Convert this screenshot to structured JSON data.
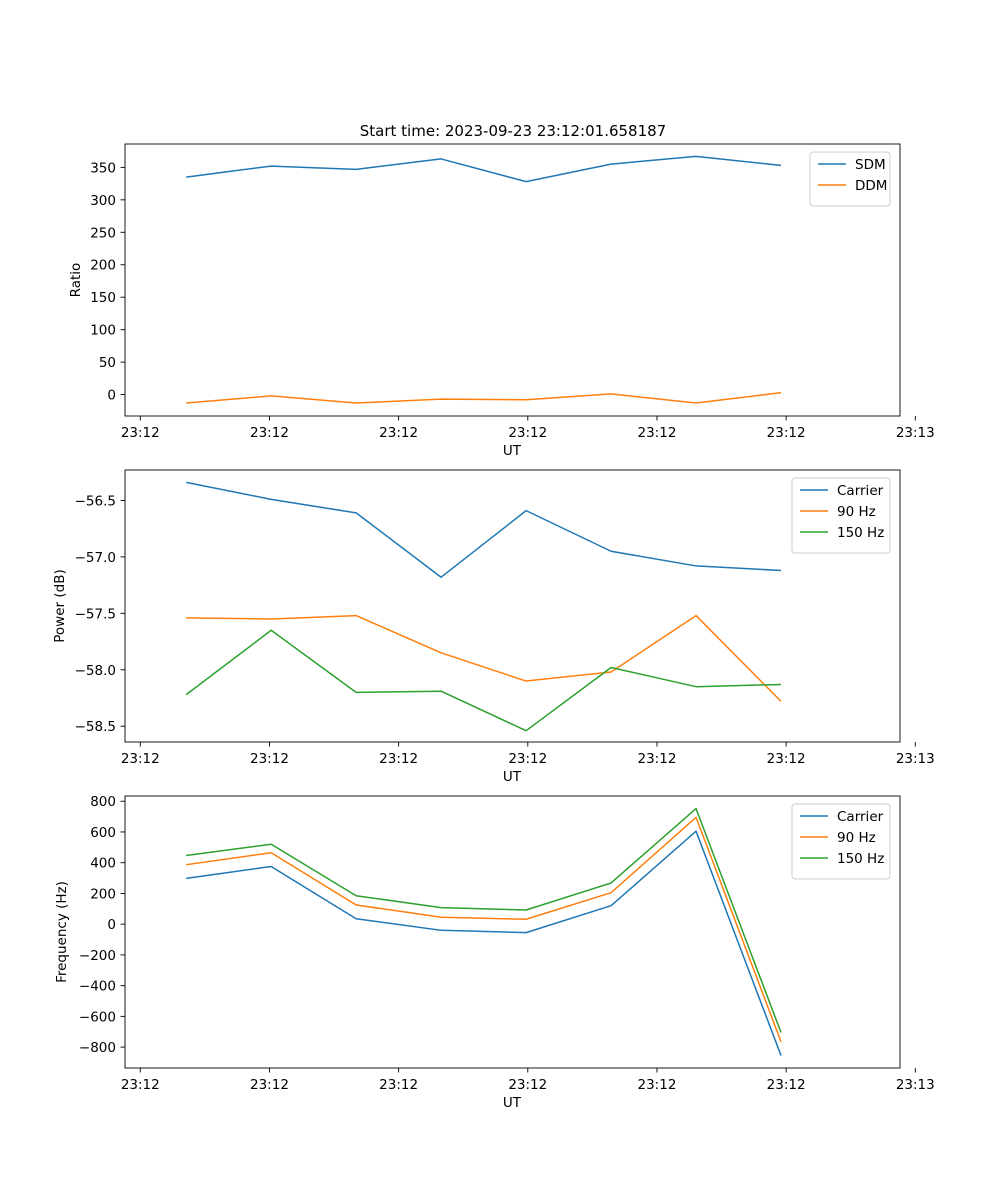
{
  "figure_title": "Start time: 2023-09-23 23:12:01.658187",
  "chart_data": [
    {
      "type": "line",
      "title": "Start time: 2023-09-23 23:12:01.658187",
      "xlabel": "UT",
      "ylabel": "Ratio",
      "x": [
        1,
        2,
        3,
        4,
        5,
        6,
        7,
        8
      ],
      "xlim": [
        0.28,
        9.4
      ],
      "x_ticks": [
        0.46,
        1.98,
        3.5,
        5.02,
        6.54,
        8.06,
        9.58
      ],
      "x_tick_labels": [
        "23:12",
        "23:12",
        "23:12",
        "23:12",
        "23:12",
        "23:12",
        "23:13"
      ],
      "ylim": [
        -33,
        386
      ],
      "y_ticks": [
        0,
        50,
        100,
        150,
        200,
        250,
        300,
        350
      ],
      "y_tick_labels": [
        "0",
        "50",
        "100",
        "150",
        "200",
        "250",
        "300",
        "350"
      ],
      "legend": "top-right",
      "series": [
        {
          "name": "SDM",
          "color": "#1f77b4",
          "values": [
            335,
            352,
            347,
            363,
            328,
            355,
            367,
            353
          ]
        },
        {
          "name": "DDM",
          "color": "#ff7f0e",
          "values": [
            -13,
            -2,
            -13,
            -7,
            -8,
            1,
            -13,
            3
          ]
        }
      ]
    },
    {
      "type": "line",
      "xlabel": "UT",
      "ylabel": "Power (dB)",
      "x": [
        1,
        2,
        3,
        4,
        5,
        6,
        7,
        8
      ],
      "xlim": [
        0.28,
        9.4
      ],
      "x_ticks": [
        0.46,
        1.98,
        3.5,
        5.02,
        6.54,
        8.06,
        9.58
      ],
      "x_tick_labels": [
        "23:12",
        "23:12",
        "23:12",
        "23:12",
        "23:12",
        "23:12",
        "23:13"
      ],
      "ylim": [
        -58.64,
        -56.23
      ],
      "y_ticks": [
        -58.5,
        -58.0,
        -57.5,
        -57.0,
        -56.5
      ],
      "y_tick_labels": [
        "−58.5",
        "−58.0",
        "−57.5",
        "−57.0",
        "−56.5"
      ],
      "legend": "top-right",
      "series": [
        {
          "name": "Carrier",
          "color": "#1f77b4",
          "values": [
            -56.34,
            -56.49,
            -56.61,
            -57.18,
            -56.59,
            -56.95,
            -57.08,
            -57.12
          ]
        },
        {
          "name": "90 Hz",
          "color": "#ff7f0e",
          "values": [
            -57.54,
            -57.55,
            -57.52,
            -57.85,
            -58.1,
            -58.02,
            -57.52,
            -58.28
          ]
        },
        {
          "name": "150 Hz",
          "color": "#2ca02c",
          "values": [
            -58.22,
            -57.65,
            -58.2,
            -58.19,
            -58.54,
            -57.98,
            -58.15,
            -58.13
          ]
        }
      ]
    },
    {
      "type": "line",
      "xlabel": "UT",
      "ylabel": "Frequency (Hz)",
      "x": [
        1,
        2,
        3,
        4,
        5,
        6,
        7,
        8
      ],
      "xlim": [
        0.28,
        9.4
      ],
      "x_ticks": [
        0.46,
        1.98,
        3.5,
        5.02,
        6.54,
        8.06,
        9.58
      ],
      "x_tick_labels": [
        "23:12",
        "23:12",
        "23:12",
        "23:12",
        "23:12",
        "23:12",
        "23:13"
      ],
      "ylim": [
        -936,
        834
      ],
      "y_ticks": [
        -800,
        -600,
        -400,
        -200,
        0,
        200,
        400,
        600,
        800
      ],
      "y_tick_labels": [
        "−800",
        "−600",
        "−400",
        "−200",
        "0",
        "200",
        "400",
        "600",
        "800"
      ],
      "legend": "top-right",
      "series": [
        {
          "name": "Carrier",
          "color": "#1f77b4",
          "values": [
            298,
            375,
            35,
            -40,
            -55,
            120,
            605,
            -855
          ]
        },
        {
          "name": "90 Hz",
          "color": "#ff7f0e",
          "values": [
            387,
            465,
            125,
            45,
            32,
            205,
            695,
            -765
          ]
        },
        {
          "name": "150 Hz",
          "color": "#2ca02c",
          "values": [
            447,
            520,
            185,
            108,
            92,
            268,
            752,
            -705
          ]
        }
      ]
    }
  ]
}
